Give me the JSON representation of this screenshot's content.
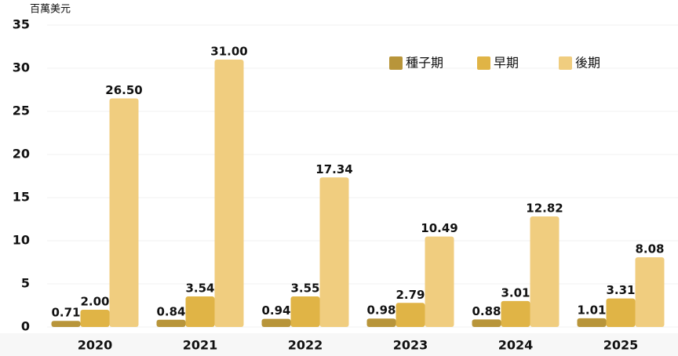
{
  "chart_data": {
    "type": "bar",
    "y_label": "百萬美元",
    "categories": [
      "2020",
      "2021",
      "2022",
      "2023",
      "2024",
      "2025"
    ],
    "series": [
      {
        "name": "種子期",
        "color": "#b8953a",
        "values": [
          0.71,
          0.84,
          0.94,
          0.98,
          0.88,
          1.01
        ],
        "value_labels": [
          "0.71",
          "0.84",
          "0.94",
          "0.98",
          "0.88",
          "1.01"
        ]
      },
      {
        "name": "早期",
        "color": "#e0b446",
        "values": [
          2,
          3.54,
          3.55,
          2.79,
          3.01,
          3.31
        ],
        "value_labels": [
          "2.00",
          "3.54",
          "3.55",
          "2.79",
          "3.01",
          "3.31"
        ]
      },
      {
        "name": "後期",
        "color": "#f0cd7f",
        "values": [
          26.5,
          31,
          17.34,
          10.49,
          12.82,
          8.08
        ],
        "value_labels": [
          "26.50",
          "31.00",
          "17.34",
          "10.49",
          "12.82",
          "8.08"
        ]
      }
    ],
    "ylim": [
      0,
      35
    ],
    "yticks": [
      0,
      5,
      10,
      15,
      20,
      25,
      30,
      35
    ],
    "grid": true,
    "legend": "top-right"
  }
}
